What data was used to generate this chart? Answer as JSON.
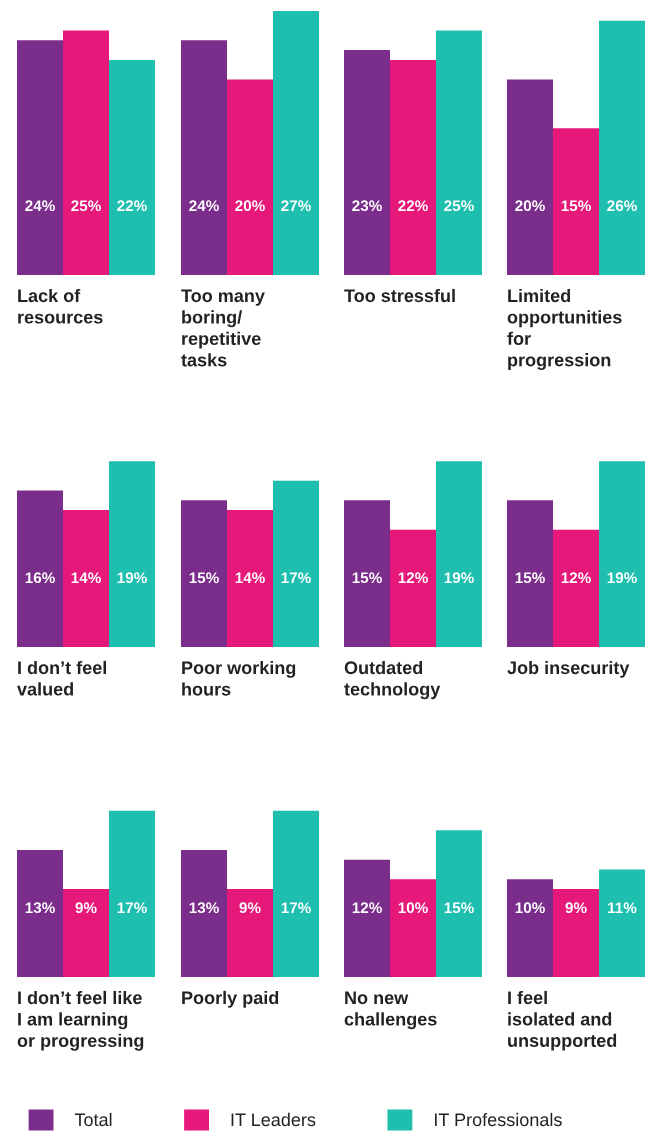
{
  "chart_data": [
    {
      "type": "bar",
      "xlabel": "Lack of\nresources",
      "categories": [
        null
      ],
      "series": [
        {
          "color": "#7b2d8b",
          "values": [
            24
          ],
          "value_labels": [
            "24%"
          ]
        },
        {
          "color": "#e6187a",
          "values": [
            25
          ],
          "value_labels": [
            "25%"
          ]
        },
        {
          "color": "#1fbfb0",
          "values": [
            22
          ],
          "value_labels": [
            "22%"
          ]
        }
      ]
    },
    {
      "type": "bar",
      "xlabel": "Too many\nboring/\nrepetitive\ntasks",
      "categories": [
        null
      ],
      "series": [
        {
          "color": "#7b2d8b",
          "values": [
            24
          ],
          "value_labels": [
            "24%"
          ]
        },
        {
          "color": "#e6187a",
          "values": [
            20
          ],
          "value_labels": [
            "20%"
          ]
        },
        {
          "color": "#1fbfb0",
          "values": [
            27
          ],
          "value_labels": [
            "27%"
          ]
        }
      ]
    },
    {
      "type": "bar",
      "xlabel": "Too stressful",
      "categories": [
        null
      ],
      "series": [
        {
          "color": "#7b2d8b",
          "values": [
            23
          ],
          "value_labels": [
            "23%"
          ]
        },
        {
          "color": "#e6187a",
          "values": [
            22
          ],
          "value_labels": [
            "22%"
          ]
        },
        {
          "color": "#1fbfb0",
          "values": [
            25
          ],
          "value_labels": [
            "25%"
          ]
        }
      ]
    },
    {
      "type": "bar",
      "xlabel": "Limited\nopportunities\nfor\nprogression",
      "categories": [
        null
      ],
      "series": [
        {
          "color": "#7b2d8b",
          "values": [
            20
          ],
          "value_labels": [
            "20%"
          ]
        },
        {
          "color": "#e6187a",
          "values": [
            15
          ],
          "value_labels": [
            "15%"
          ]
        },
        {
          "color": "#1fbfb0",
          "values": [
            26
          ],
          "value_labels": [
            "26%"
          ]
        }
      ]
    },
    {
      "type": "bar",
      "xlabel": "I don’t feel\nvalued",
      "categories": [
        null
      ],
      "series": [
        {
          "color": "#7b2d8b",
          "values": [
            16
          ],
          "value_labels": [
            "16%"
          ]
        },
        {
          "color": "#e6187a",
          "values": [
            14
          ],
          "value_labels": [
            "14%"
          ]
        },
        {
          "color": "#1fbfb0",
          "values": [
            19
          ],
          "value_labels": [
            "19%"
          ]
        }
      ]
    },
    {
      "type": "bar",
      "xlabel": "Poor working\nhours",
      "categories": [
        null
      ],
      "series": [
        {
          "color": "#7b2d8b",
          "values": [
            15
          ],
          "value_labels": [
            "15%"
          ]
        },
        {
          "color": "#e6187a",
          "values": [
            14
          ],
          "value_labels": [
            "14%"
          ]
        },
        {
          "color": "#1fbfb0",
          "values": [
            17
          ],
          "value_labels": [
            "17%"
          ]
        }
      ]
    },
    {
      "type": "bar",
      "xlabel": "Outdated\ntechnology",
      "categories": [
        null
      ],
      "series": [
        {
          "color": "#7b2d8b",
          "values": [
            15
          ],
          "value_labels": [
            "15%"
          ]
        },
        {
          "color": "#e6187a",
          "values": [
            12
          ],
          "value_labels": [
            "12%"
          ]
        },
        {
          "color": "#1fbfb0",
          "values": [
            19
          ],
          "value_labels": [
            "19%"
          ]
        }
      ]
    },
    {
      "type": "bar",
      "xlabel": "Job insecurity",
      "categories": [
        null
      ],
      "series": [
        {
          "color": "#7b2d8b",
          "values": [
            15
          ],
          "value_labels": [
            "15%"
          ]
        },
        {
          "color": "#e6187a",
          "values": [
            12
          ],
          "value_labels": [
            "12%"
          ]
        },
        {
          "color": "#1fbfb0",
          "values": [
            19
          ],
          "value_labels": [
            "19%"
          ]
        }
      ]
    },
    {
      "type": "bar",
      "xlabel": "I don’t feel like\nI am learning\nor progressing",
      "categories": [
        null
      ],
      "series": [
        {
          "color": "#7b2d8b",
          "values": [
            13
          ],
          "value_labels": [
            "13%"
          ]
        },
        {
          "color": "#e6187a",
          "values": [
            9
          ],
          "value_labels": [
            "9%"
          ]
        },
        {
          "color": "#1fbfb0",
          "values": [
            17
          ],
          "value_labels": [
            "17%"
          ]
        }
      ]
    },
    {
      "type": "bar",
      "xlabel": "Poorly paid",
      "categories": [
        null
      ],
      "series": [
        {
          "color": "#7b2d8b",
          "values": [
            13
          ],
          "value_labels": [
            "13%"
          ]
        },
        {
          "color": "#e6187a",
          "values": [
            9
          ],
          "value_labels": [
            "9%"
          ]
        },
        {
          "color": "#1fbfb0",
          "values": [
            17
          ],
          "value_labels": [
            "17%"
          ]
        }
      ]
    },
    {
      "type": "bar",
      "xlabel": "No new\nchallenges",
      "categories": [
        null
      ],
      "series": [
        {
          "color": "#7b2d8b",
          "values": [
            12
          ],
          "value_labels": [
            "12%"
          ]
        },
        {
          "color": "#e6187a",
          "values": [
            10
          ],
          "value_labels": [
            "10%"
          ]
        },
        {
          "color": "#1fbfb0",
          "values": [
            15
          ],
          "value_labels": [
            "15%"
          ]
        }
      ]
    },
    {
      "type": "bar",
      "xlabel": "I feel\nisolated and\nunsupported",
      "categories": [
        null
      ],
      "legend": "bottom",
      "series": [
        {
          "name": "Total",
          "color": "#7b2d8b",
          "values": [
            10
          ],
          "value_labels": [
            "10%"
          ]
        },
        {
          "name": "IT Leaders",
          "color": "#e6187a",
          "values": [
            9
          ],
          "value_labels": [
            "9%"
          ]
        },
        {
          "name": "IT Professionals",
          "color": "#1fbfb0",
          "values": [
            11
          ],
          "value_labels": [
            "11%"
          ]
        }
      ]
    }
  ]
}
